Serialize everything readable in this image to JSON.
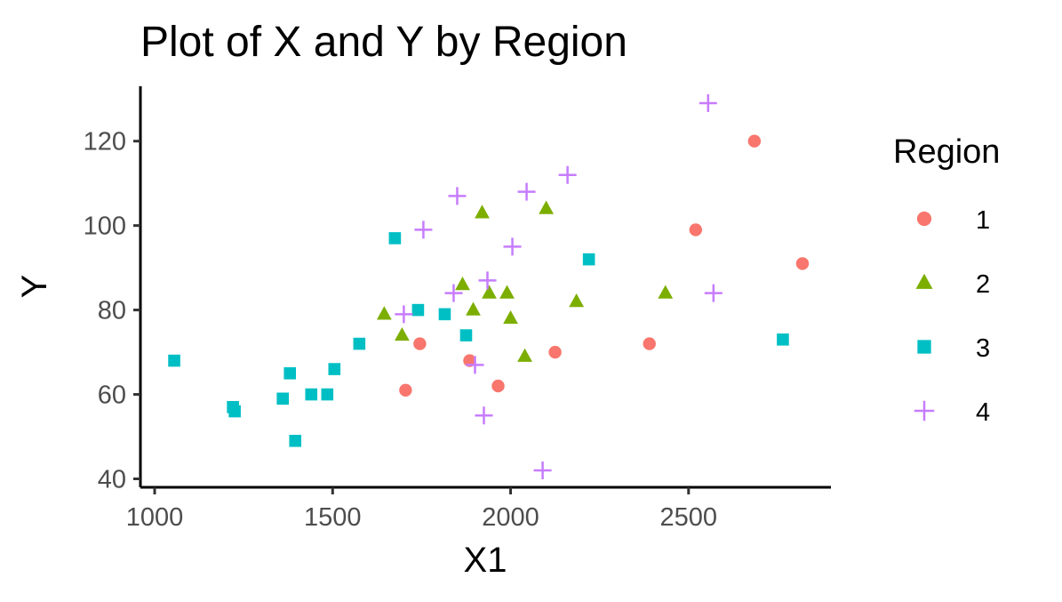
{
  "chart_data": {
    "type": "scatter",
    "title": "Plot of X and Y by Region",
    "xlabel": "X1",
    "ylabel": "Y",
    "xlim": [
      960,
      2900
    ],
    "ylim": [
      38,
      133
    ],
    "x_ticks": [
      1000,
      1500,
      2000,
      2500
    ],
    "y_ticks": [
      40,
      60,
      80,
      100,
      120
    ],
    "grid": false,
    "legend": {
      "title": "Region",
      "position": "right"
    },
    "series": [
      {
        "name": "1",
        "color": "#F8766D",
        "marker": "circle",
        "points": [
          [
            1705,
            61
          ],
          [
            1745,
            72
          ],
          [
            1885,
            68
          ],
          [
            1965,
            62
          ],
          [
            2125,
            70
          ],
          [
            2390,
            72
          ],
          [
            2520,
            99
          ],
          [
            2685,
            120
          ],
          [
            2820,
            91
          ]
        ]
      },
      {
        "name": "2",
        "color": "#7CAE00",
        "marker": "triangle",
        "points": [
          [
            1645,
            79
          ],
          [
            1695,
            74
          ],
          [
            1865,
            86
          ],
          [
            1895,
            80
          ],
          [
            1920,
            103
          ],
          [
            1940,
            84
          ],
          [
            1990,
            84
          ],
          [
            2000,
            78
          ],
          [
            2040,
            69
          ],
          [
            2100,
            104
          ],
          [
            2185,
            82
          ],
          [
            2435,
            84
          ]
        ]
      },
      {
        "name": "3",
        "color": "#00BFC4",
        "marker": "square",
        "points": [
          [
            1055,
            68
          ],
          [
            1220,
            57
          ],
          [
            1225,
            56
          ],
          [
            1360,
            59
          ],
          [
            1380,
            65
          ],
          [
            1395,
            49
          ],
          [
            1440,
            60
          ],
          [
            1485,
            60
          ],
          [
            1505,
            66
          ],
          [
            1575,
            72
          ],
          [
            1675,
            97
          ],
          [
            1740,
            80
          ],
          [
            1815,
            79
          ],
          [
            1875,
            74
          ],
          [
            2220,
            92
          ],
          [
            2765,
            73
          ]
        ]
      },
      {
        "name": "4",
        "color": "#C77CFF",
        "marker": "plus",
        "points": [
          [
            1700,
            79
          ],
          [
            1755,
            99
          ],
          [
            1840,
            84
          ],
          [
            1850,
            107
          ],
          [
            1900,
            67
          ],
          [
            1925,
            55
          ],
          [
            1935,
            87
          ],
          [
            2005,
            95
          ],
          [
            2045,
            108
          ],
          [
            2090,
            42
          ],
          [
            2160,
            112
          ],
          [
            2555,
            129
          ],
          [
            2570,
            84
          ]
        ]
      }
    ]
  }
}
